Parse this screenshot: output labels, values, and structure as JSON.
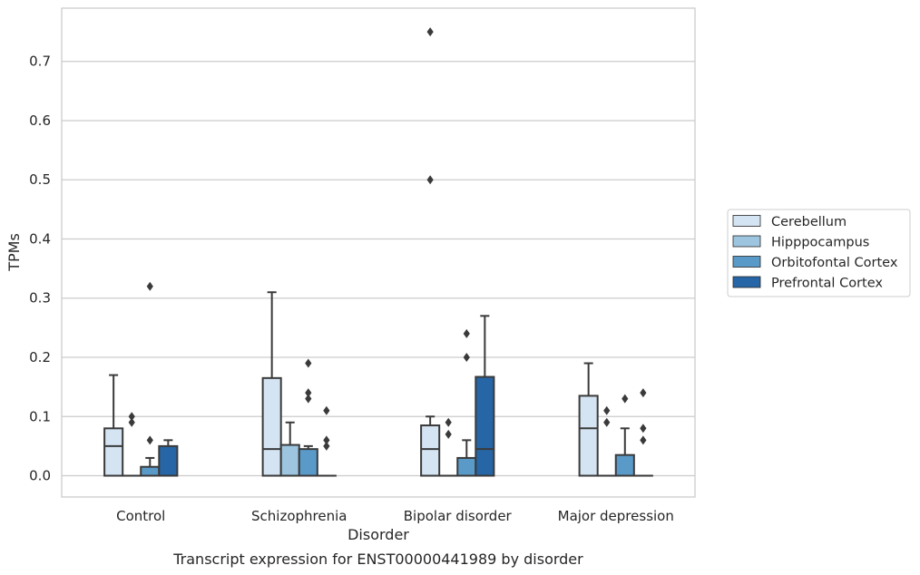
{
  "chart_data": {
    "type": "box",
    "title": "",
    "caption": "Transcript expression for ENST00000441989 by disorder",
    "xlabel": "Disorder",
    "ylabel": "TPMs",
    "ylim": [
      -0.036,
      0.79
    ],
    "yticks": [
      0.0,
      0.1,
      0.2,
      0.3,
      0.4,
      0.5,
      0.6,
      0.7
    ],
    "grid": "horizontal",
    "legend_position": "right",
    "categories": [
      "Control",
      "Schizophrenia",
      "Bipolar disorder",
      "Major depression"
    ],
    "series": [
      {
        "name": "Cerebellum",
        "color": "#d4e4f3",
        "boxes": [
          {
            "q1": 0.0,
            "median": 0.05,
            "q3": 0.08,
            "whisker_low": 0.0,
            "whisker_high": 0.17,
            "outliers": []
          },
          {
            "q1": 0.0,
            "median": 0.045,
            "q3": 0.165,
            "whisker_low": 0.0,
            "whisker_high": 0.31,
            "outliers": []
          },
          {
            "q1": 0.0,
            "median": 0.045,
            "q3": 0.085,
            "whisker_low": 0.0,
            "whisker_high": 0.1,
            "outliers": [
              0.5,
              0.75
            ]
          },
          {
            "q1": 0.0,
            "median": 0.08,
            "q3": 0.135,
            "whisker_low": 0.0,
            "whisker_high": 0.19,
            "outliers": []
          }
        ]
      },
      {
        "name": "Hipppocampus",
        "color": "#9dc5df",
        "boxes": [
          {
            "q1": 0.0,
            "median": 0.0,
            "q3": 0.0,
            "whisker_low": 0.0,
            "whisker_high": 0.0,
            "outliers": [
              0.09,
              0.1
            ]
          },
          {
            "q1": 0.0,
            "median": 0.0,
            "q3": 0.052,
            "whisker_low": 0.0,
            "whisker_high": 0.09,
            "outliers": []
          },
          {
            "q1": 0.0,
            "median": 0.0,
            "q3": 0.0,
            "whisker_low": 0.0,
            "whisker_high": 0.0,
            "outliers": [
              0.07,
              0.09
            ]
          },
          {
            "q1": 0.0,
            "median": 0.0,
            "q3": 0.0,
            "whisker_low": 0.0,
            "whisker_high": 0.0,
            "outliers": [
              0.09,
              0.11
            ]
          }
        ]
      },
      {
        "name": "Orbitofontal Cortex",
        "color": "#5a9ac8",
        "boxes": [
          {
            "q1": 0.0,
            "median": 0.0,
            "q3": 0.015,
            "whisker_low": 0.0,
            "whisker_high": 0.03,
            "outliers": [
              0.06,
              0.32
            ]
          },
          {
            "q1": 0.0,
            "median": 0.0,
            "q3": 0.045,
            "whisker_low": 0.0,
            "whisker_high": 0.05,
            "outliers": [
              0.13,
              0.14,
              0.19
            ]
          },
          {
            "q1": 0.0,
            "median": 0.0,
            "q3": 0.03,
            "whisker_low": 0.0,
            "whisker_high": 0.06,
            "outliers": [
              0.2,
              0.24
            ]
          },
          {
            "q1": 0.0,
            "median": 0.0,
            "q3": 0.035,
            "whisker_low": 0.0,
            "whisker_high": 0.08,
            "outliers": [
              0.13
            ]
          }
        ]
      },
      {
        "name": "Prefrontal Cortex",
        "color": "#2666a7",
        "boxes": [
          {
            "q1": 0.0,
            "median": 0.0,
            "q3": 0.05,
            "whisker_low": 0.0,
            "whisker_high": 0.06,
            "outliers": []
          },
          {
            "q1": 0.0,
            "median": 0.0,
            "q3": 0.0,
            "whisker_low": 0.0,
            "whisker_high": 0.0,
            "outliers": [
              0.05,
              0.06,
              0.11
            ]
          },
          {
            "q1": 0.0,
            "median": 0.045,
            "q3": 0.167,
            "whisker_low": 0.0,
            "whisker_high": 0.27,
            "outliers": []
          },
          {
            "q1": 0.0,
            "median": 0.0,
            "q3": 0.0,
            "whisker_low": 0.0,
            "whisker_high": 0.0,
            "outliers": [
              0.06,
              0.08,
              0.14
            ]
          }
        ]
      }
    ]
  }
}
